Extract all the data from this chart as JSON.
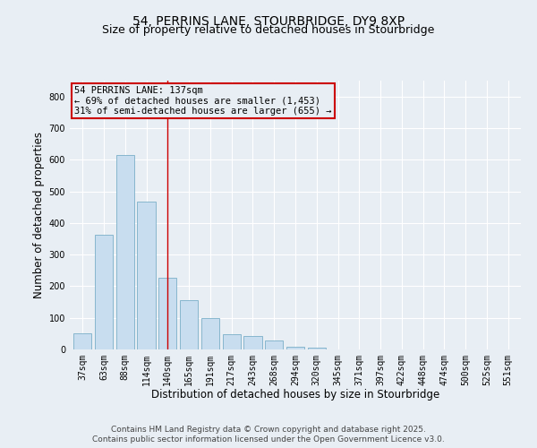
{
  "title_line1": "54, PERRINS LANE, STOURBRIDGE, DY9 8XP",
  "title_line2": "Size of property relative to detached houses in Stourbridge",
  "xlabel": "Distribution of detached houses by size in Stourbridge",
  "ylabel": "Number of detached properties",
  "categories": [
    "37sqm",
    "63sqm",
    "88sqm",
    "114sqm",
    "140sqm",
    "165sqm",
    "191sqm",
    "217sqm",
    "243sqm",
    "268sqm",
    "294sqm",
    "320sqm",
    "345sqm",
    "371sqm",
    "397sqm",
    "422sqm",
    "448sqm",
    "474sqm",
    "500sqm",
    "525sqm",
    "551sqm"
  ],
  "values": [
    52,
    362,
    614,
    468,
    228,
    155,
    100,
    47,
    42,
    28,
    8,
    5,
    0,
    0,
    0,
    0,
    0,
    0,
    0,
    0,
    0
  ],
  "bar_color": "#c8ddef",
  "bar_edge_color": "#7aafc8",
  "vline_x_index": 4,
  "vline_color": "#cc0000",
  "annotation_text": "54 PERRINS LANE: 137sqm\n← 69% of detached houses are smaller (1,453)\n31% of semi-detached houses are larger (655) →",
  "annotation_box_color": "#cc0000",
  "ylim": [
    0,
    850
  ],
  "yticks": [
    0,
    100,
    200,
    300,
    400,
    500,
    600,
    700,
    800
  ],
  "background_color": "#e8eef4",
  "footer_line1": "Contains HM Land Registry data © Crown copyright and database right 2025.",
  "footer_line2": "Contains public sector information licensed under the Open Government Licence v3.0.",
  "title_fontsize": 10,
  "subtitle_fontsize": 9,
  "axis_label_fontsize": 8.5,
  "tick_fontsize": 7,
  "annotation_fontsize": 7.5,
  "footer_fontsize": 6.5
}
